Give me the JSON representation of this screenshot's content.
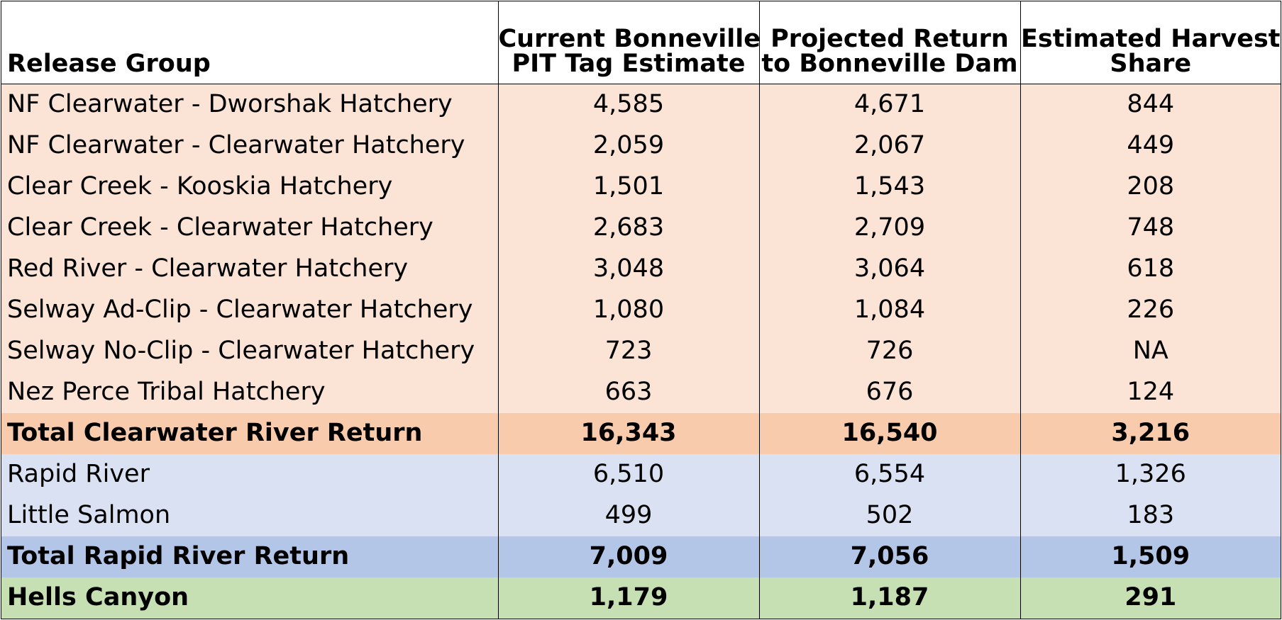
{
  "headers": {
    "release_group": "Release Group",
    "current_line1": "Current Bonneville",
    "current_line2": "PIT Tag Estimate",
    "projected_line1": "Projected Return",
    "projected_line2": "to Bonneville Dam",
    "harvest_line1": "Estimated Harvest",
    "harvest_line2": "Share"
  },
  "colors": {
    "clearwater_rows": "#fbe3d6",
    "clearwater_total": "#f8cbad",
    "rapid_rows": "#dae1f2",
    "rapid_total": "#b4c6e7",
    "hells_canyon": "#c6e0b4",
    "header": "#ffffff",
    "border": "#000000"
  },
  "rows": [
    {
      "group": "NF Clearwater - Dworshak Hatchery",
      "current": "4,585",
      "projected": "4,671",
      "harvest": "844",
      "color": "#fbe3d6",
      "bold": false
    },
    {
      "group": "NF Clearwater - Clearwater Hatchery",
      "current": "2,059",
      "projected": "2,067",
      "harvest": "449",
      "color": "#fbe3d6",
      "bold": false
    },
    {
      "group": "Clear Creek - Kooskia Hatchery",
      "current": "1,501",
      "projected": "1,543",
      "harvest": "208",
      "color": "#fbe3d6",
      "bold": false
    },
    {
      "group": "Clear Creek - Clearwater Hatchery",
      "current": "2,683",
      "projected": "2,709",
      "harvest": "748",
      "color": "#fbe3d6",
      "bold": false
    },
    {
      "group": "Red River - Clearwater Hatchery",
      "current": "3,048",
      "projected": "3,064",
      "harvest": "618",
      "color": "#fbe3d6",
      "bold": false
    },
    {
      "group": "Selway Ad-Clip - Clearwater Hatchery",
      "current": "1,080",
      "projected": "1,084",
      "harvest": "226",
      "color": "#fbe3d6",
      "bold": false
    },
    {
      "group": "Selway No-Clip - Clearwater Hatchery",
      "current": "723",
      "projected": "726",
      "harvest": "NA",
      "color": "#fbe3d6",
      "bold": false
    },
    {
      "group": "Nez Perce Tribal Hatchery",
      "current": "663",
      "projected": "676",
      "harvest": "124",
      "color": "#fbe3d6",
      "bold": false
    },
    {
      "group": "Total Clearwater River Return",
      "current": "16,343",
      "projected": "16,540",
      "harvest": "3,216",
      "color": "#f8cbad",
      "bold": true
    },
    {
      "group": "Rapid River",
      "current": "6,510",
      "projected": "6,554",
      "harvest": "1,326",
      "color": "#dae1f2",
      "bold": false
    },
    {
      "group": "Little Salmon",
      "current": "499",
      "projected": "502",
      "harvest": "183",
      "color": "#dae1f2",
      "bold": false
    },
    {
      "group": "Total Rapid River Return",
      "current": "7,009",
      "projected": "7,056",
      "harvest": "1,509",
      "color": "#b4c6e7",
      "bold": true
    },
    {
      "group": "Hells Canyon",
      "current": "1,179",
      "projected": "1,187",
      "harvest": "291",
      "color": "#c6e0b4",
      "bold": true
    }
  ]
}
